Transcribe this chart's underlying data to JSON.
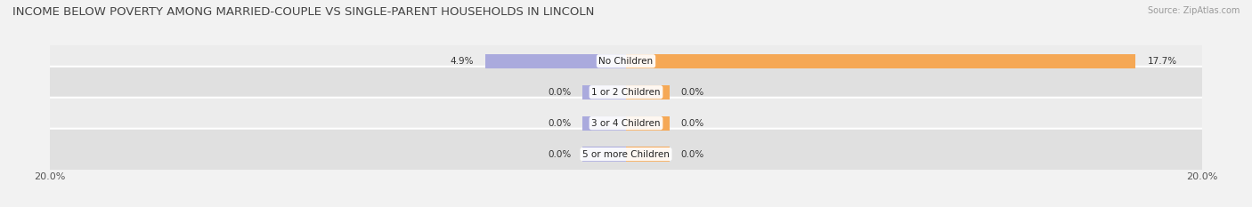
{
  "title": "INCOME BELOW POVERTY AMONG MARRIED-COUPLE VS SINGLE-PARENT HOUSEHOLDS IN LINCOLN",
  "source": "Source: ZipAtlas.com",
  "categories": [
    "No Children",
    "1 or 2 Children",
    "3 or 4 Children",
    "5 or more Children"
  ],
  "married_values": [
    4.9,
    0.0,
    0.0,
    0.0
  ],
  "single_values": [
    17.7,
    0.0,
    0.0,
    0.0
  ],
  "xlim_left": -20.0,
  "xlim_right": 20.0,
  "married_color": "#aaaadd",
  "single_color": "#f5a855",
  "bar_height": 0.62,
  "row_bg_light": "#ececec",
  "row_bg_dark": "#e0e0e0",
  "title_fontsize": 9.5,
  "source_fontsize": 7,
  "label_fontsize": 7.5,
  "value_fontsize": 7.5,
  "axis_label_fontsize": 8,
  "zero_bar_size": 1.5,
  "fig_bg": "#f2f2f2"
}
